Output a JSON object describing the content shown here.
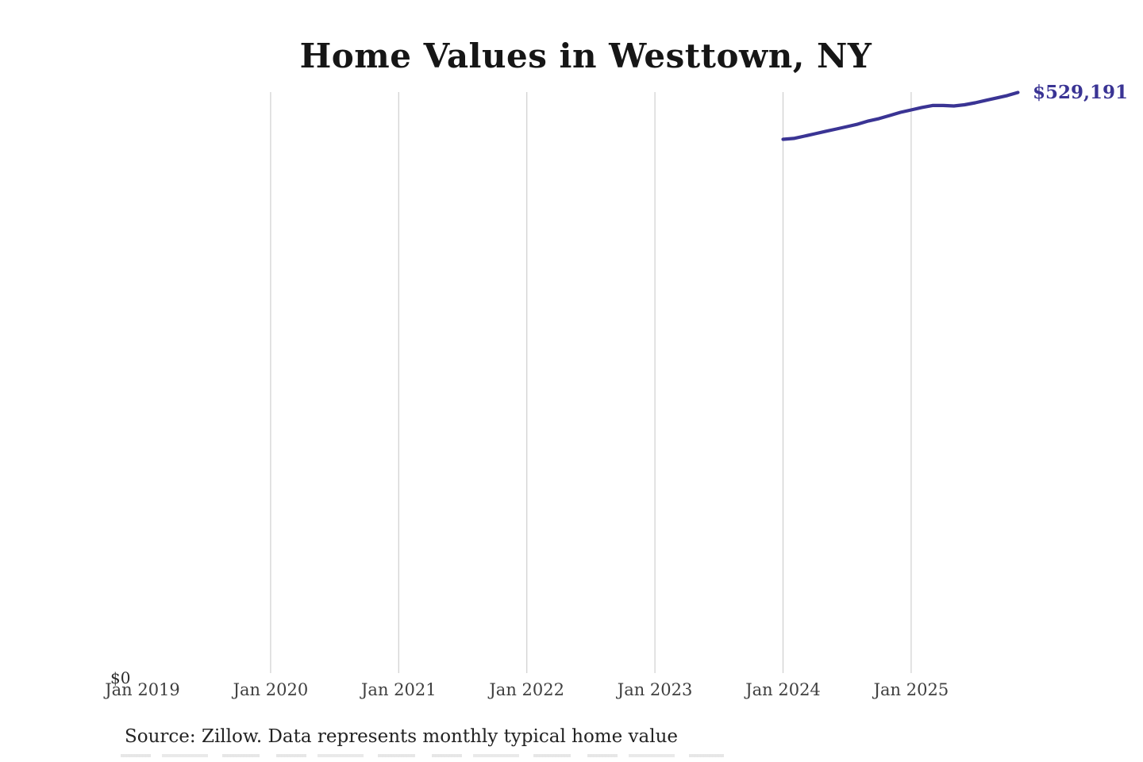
{
  "page": {
    "title": "Home Values in Westtown, NY",
    "source_note": "Source: Zillow. Data represents monthly typical home value"
  },
  "chart_data": {
    "type": "line",
    "title": "Home Values in Westtown, NY",
    "x_tick_labels": [
      "Jan 2019",
      "Jan 2020",
      "Jan 2021",
      "Jan 2022",
      "Jan 2023",
      "Jan 2024",
      "Jan 2025"
    ],
    "y_origin_label": "$0",
    "end_value_label": "$529,191",
    "end_value": 529191,
    "ylim": [
      0,
      560000
    ],
    "grid": "vertical-gridlines-only",
    "legend_position": "none",
    "series": [
      {
        "name": "Monthly typical home value",
        "x": [
          "Jan 2024",
          "Feb 2024",
          "Mar 2024",
          "Apr 2024",
          "May 2024",
          "Jun 2024",
          "Jul 2024",
          "Aug 2024",
          "Sep 2024",
          "Oct 2024",
          "Nov 2024",
          "Dec 2024",
          "Jan 2025",
          "Feb 2025",
          "Mar 2025",
          "Apr 2025",
          "May 2025",
          "Jun 2025",
          "Jul 2025",
          "Aug 2025",
          "Sep 2025",
          "Oct 2025",
          "Nov 2025"
        ],
        "values": [
          486500,
          487300,
          489400,
          491600,
          493800,
          495900,
          498100,
          500300,
          503200,
          505400,
          508200,
          511100,
          513300,
          515500,
          517300,
          517300,
          516900,
          518000,
          519800,
          522000,
          524200,
          526400,
          529191
        ]
      }
    ],
    "colors": {
      "line": "#3a3494",
      "gridline": "#cfcfcf",
      "end_label": "#3a3494",
      "tick_label": "#3f3f3f",
      "title": "#161616"
    },
    "source": "Source: Zillow. Data represents monthly typical home value"
  }
}
